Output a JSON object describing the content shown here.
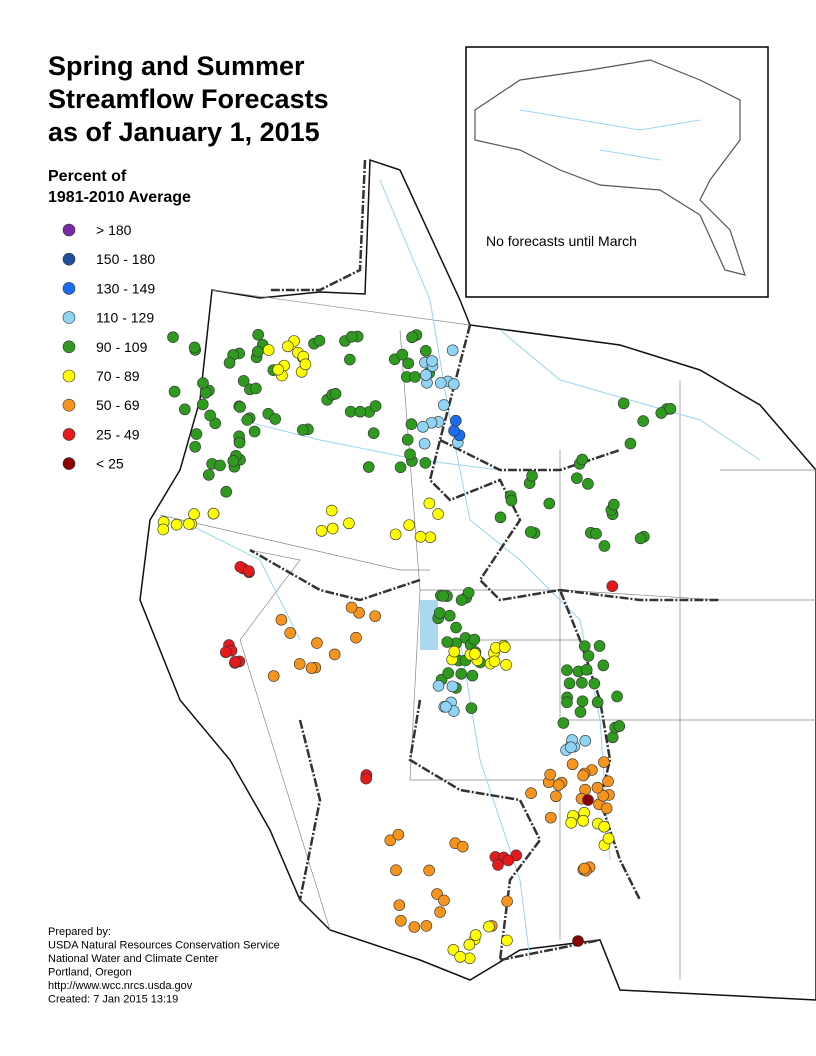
{
  "title": [
    "Spring and Summer",
    "Streamflow Forecasts",
    "as of January 1, 2015"
  ],
  "legend": {
    "title": [
      "Percent of",
      "1981-2010 Average"
    ],
    "items": [
      {
        "label": "> 180",
        "color": "#7a2aa6"
      },
      {
        "label": "150 - 180",
        "color": "#1f4e9c"
      },
      {
        "label": "130 - 149",
        "color": "#1a6cf0"
      },
      {
        "label": "110 - 129",
        "color": "#8fd3f5"
      },
      {
        "label": "90 - 109",
        "color": "#2e9a1e"
      },
      {
        "label": "70 - 89",
        "color": "#ffff00"
      },
      {
        "label": "50 - 69",
        "color": "#f7941d"
      },
      {
        "label": "25 - 49",
        "color": "#e41a1c"
      },
      {
        "label": "< 25",
        "color": "#8b0000"
      }
    ]
  },
  "inset": {
    "note": "No forecasts until March"
  },
  "credits": [
    "Prepared by:",
    "USDA Natural Resources Conservation Service",
    "National Water and Climate Center",
    "Portland, Oregon",
    "http://www.wcc.nrcs.usda.gov",
    "Created:   7 Jan 2015   13:19"
  ]
}
